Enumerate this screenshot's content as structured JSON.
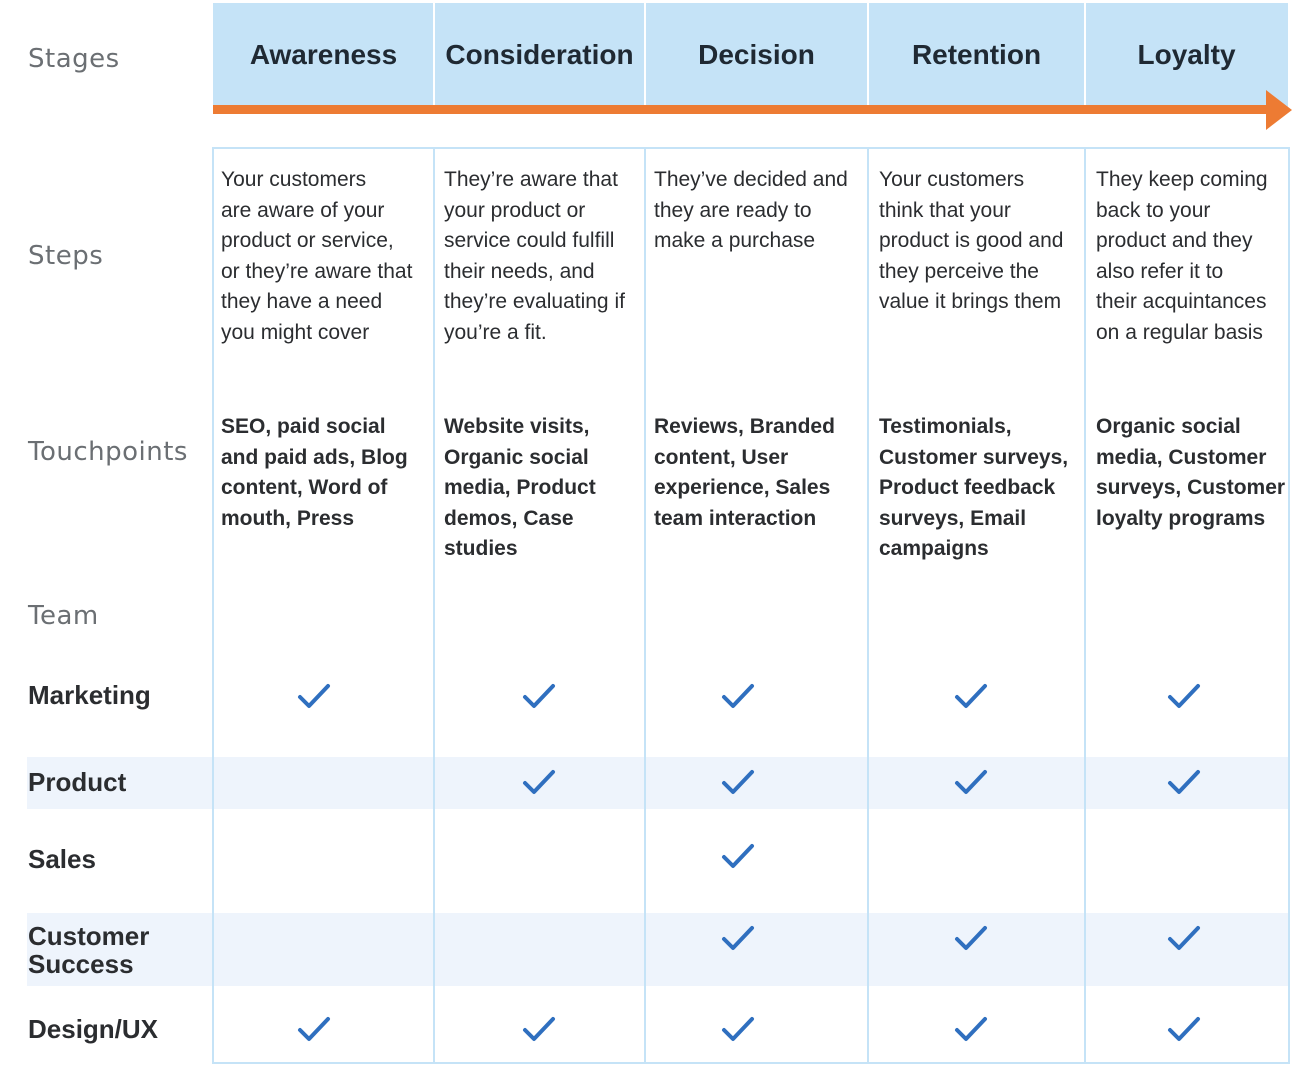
{
  "row_labels": {
    "stages": "Stages",
    "steps": "Steps",
    "touchpoints": "Touchpoints",
    "team": "Team"
  },
  "stages": [
    {
      "title": "Awareness",
      "steps": "Your customers\nare aware of your\nproduct or service,\nor they’re aware that\nthey have a need\nyou might cover",
      "touchpoints": "SEO, paid social\nand paid ads, Blog\ncontent, Word of\nmouth, Press"
    },
    {
      "title": "Consideration",
      "steps": "They’re aware that\nyour product or\nservice could fulfill\ntheir needs, and\nthey’re evaluating if\nyou’re a fit.",
      "touchpoints": "Website visits,\nOrganic social\nmedia, Product\ndemos, Case\nstudies"
    },
    {
      "title": "Decision",
      "steps": "They’ve decided and\nthey are ready to\nmake a purchase",
      "touchpoints": "Reviews, Branded\ncontent, User\nexperience, Sales\nteam interaction"
    },
    {
      "title": "Retention",
      "steps": "Your customers\nthink that your\nproduct is good and\nthey perceive the\nvalue it brings them",
      "touchpoints": "Testimonials,\nCustomer surveys,\nProduct feedback\nsurveys, Email\ncampaigns"
    },
    {
      "title": "Loyalty",
      "steps": "They keep coming\nback to your\nproduct and they\nalso refer it to\ntheir acquintances\non a regular basis",
      "touchpoints": "Organic social\nmedia, Customer\nsurveys, Customer\nloyalty programs"
    }
  ],
  "teams": [
    {
      "name": "Marketing",
      "checks": [
        true,
        true,
        true,
        true,
        true
      ]
    },
    {
      "name": "Product",
      "checks": [
        false,
        true,
        true,
        true,
        true
      ]
    },
    {
      "name": "Sales",
      "checks": [
        false,
        false,
        true,
        false,
        false
      ]
    },
    {
      "name": "Customer\nSuccess",
      "checks": [
        false,
        false,
        true,
        true,
        true
      ]
    },
    {
      "name": "Design/UX",
      "checks": [
        true,
        true,
        true,
        true,
        true
      ]
    }
  ],
  "colors": {
    "header_fill": "#c5e3f7",
    "arrow": "#ed7b33",
    "check": "#2f6fbf",
    "stripe": "#eef4fc"
  },
  "icons": {
    "check": "check-icon"
  }
}
